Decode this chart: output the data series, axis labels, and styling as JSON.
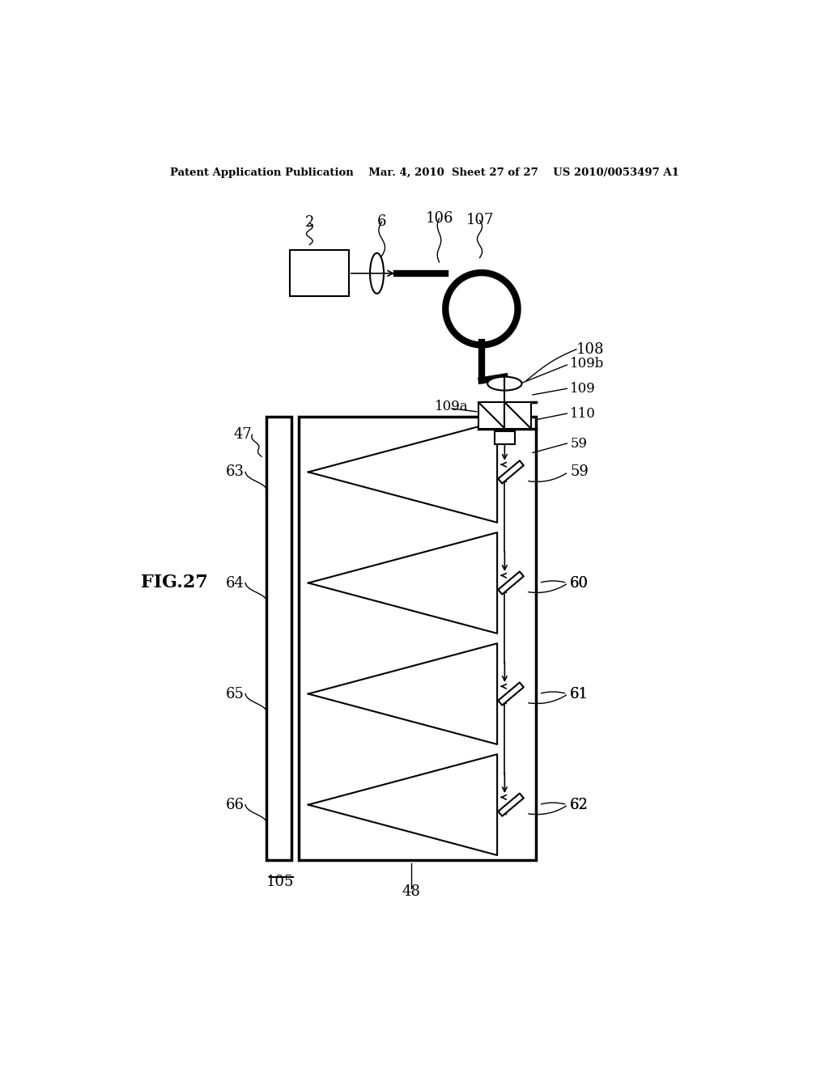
{
  "bg_color": "#ffffff",
  "header_text": "Patent Application Publication    Mar. 4, 2010  Sheet 27 of 27    US 2010/0053497 A1",
  "fig_label": "FIG.27",
  "label_105": "105",
  "label_48": "48",
  "label_47": "47",
  "label_2": "2",
  "label_6": "6",
  "label_106": "106",
  "label_107": "107",
  "label_108": "108",
  "label_109": "109",
  "label_109a": "109a",
  "label_109b": "109b",
  "label_110": "110",
  "label_59": "59",
  "label_60": "60",
  "label_61": "61",
  "label_62": "62",
  "label_63": "63",
  "label_64": "64",
  "label_65": "65",
  "label_66": "66",
  "lw_thin": 1.5,
  "lw_thick": 2.5,
  "lw_vthick": 6.0
}
